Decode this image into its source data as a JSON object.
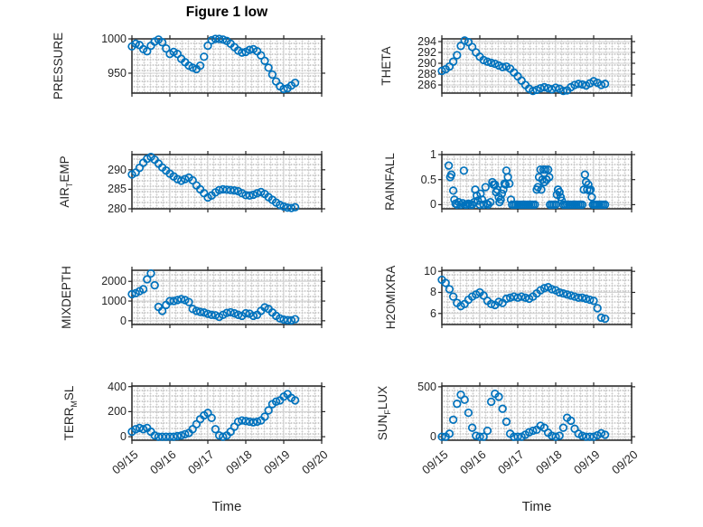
{
  "chart_data": {
    "type": "scatter",
    "title": "Figure 1 low",
    "xlabel": "Time",
    "xlim": [
      0,
      5
    ],
    "xticks": [
      0,
      1,
      2,
      3,
      4,
      5
    ],
    "xticklabels": [
      "09/15",
      "09/16",
      "09/17",
      "09/18",
      "09/19",
      "09/20"
    ],
    "x_unit": "days since 09/15",
    "grid": "major solid, minor dotted",
    "colors": {
      "marker": "#0072bd",
      "axis": "#252525",
      "grid": "#d2d2d2",
      "text": "#262626"
    },
    "x": [
      0,
      0.1,
      0.2,
      0.3,
      0.4,
      0.5,
      0.6,
      0.7,
      0.8,
      0.9,
      1,
      1.1,
      1.2,
      1.3,
      1.4,
      1.5,
      1.6,
      1.7,
      1.8,
      1.9,
      2,
      2.1,
      2.2,
      2.3,
      2.4,
      2.5,
      2.6,
      2.7,
      2.8,
      2.9,
      3,
      3.1,
      3.2,
      3.3,
      3.4,
      3.5,
      3.6,
      3.7,
      3.8,
      3.9,
      4,
      4.1,
      4.2,
      4.3
    ],
    "panels": [
      {
        "name": "PRESSURE",
        "ylabel_pre": "PRESSURE",
        "ylabel_sub": "",
        "ylabel_post": "",
        "ylim": [
          921,
          1000
        ],
        "yticks": [
          950,
          1000
        ],
        "values": [
          989,
          993,
          991,
          985,
          982,
          990,
          996,
          999,
          995,
          986,
          978,
          981,
          978,
          971,
          966,
          961,
          958,
          956,
          961,
          974,
          990,
          998,
          1000,
          1000,
          999,
          997,
          993,
          988,
          983,
          980,
          981,
          984,
          985,
          982,
          976,
          968,
          958,
          948,
          938,
          931,
          927,
          928,
          932,
          936
        ]
      },
      {
        "name": "THETA",
        "ylabel_pre": "THETA",
        "ylabel_sub": "",
        "ylabel_post": "",
        "ylim": [
          284.5,
          294.5
        ],
        "yticks": [
          286,
          288,
          290,
          292,
          294
        ],
        "values": [
          288.6,
          288.9,
          289.4,
          290.3,
          291.5,
          293.2,
          294.2,
          293.9,
          293,
          292,
          291.2,
          290.6,
          290.3,
          290.1,
          289.9,
          289.6,
          289.3,
          289.4,
          289,
          288.3,
          287.6,
          286.8,
          286,
          285.3,
          284.9,
          285.1,
          285.4,
          285.6,
          285.4,
          285.2,
          285.5,
          285.3,
          284.9,
          285,
          285.6,
          286,
          286.2,
          286.1,
          285.9,
          286.3,
          286.7,
          286.4,
          286,
          286.2
        ]
      },
      {
        "name": "AIR_TEMP",
        "ylabel_pre": "AIR",
        "ylabel_sub": "T",
        "ylabel_post": "EMP",
        "ylim": [
          280,
          293.9
        ],
        "yticks": [
          280,
          285,
          290
        ],
        "values": [
          288.8,
          289.3,
          290.5,
          291.8,
          292.8,
          293.3,
          292.6,
          291.6,
          290.6,
          289.8,
          289,
          288.3,
          287.6,
          287.2,
          287.6,
          288,
          287.3,
          286,
          285,
          284,
          282.9,
          283.4,
          284.2,
          284.8,
          285,
          284.9,
          284.8,
          284.7,
          284.5,
          284,
          283.5,
          283.4,
          283.6,
          284,
          284.3,
          283.8,
          283,
          282.3,
          281.6,
          281,
          280.6,
          280.3,
          280.2,
          280.4
        ]
      },
      {
        "name": "RAINFALL",
        "ylabel_pre": "RAINFALL",
        "ylabel_sub": "",
        "ylabel_post": "",
        "ylim": [
          -0.083,
          1.0
        ],
        "yticks": [
          0,
          0.5,
          1
        ],
        "points": [
          [
            0.18,
            0.78
          ],
          [
            0.22,
            0.55
          ],
          [
            0.25,
            0.6
          ],
          [
            0.3,
            0.28
          ],
          [
            0.33,
            0.1
          ],
          [
            0.36,
            0.02
          ],
          [
            0.4,
            0
          ],
          [
            0.44,
            0.05
          ],
          [
            0.5,
            0
          ],
          [
            0.55,
            0.03
          ],
          [
            0.58,
            0.68
          ],
          [
            0.62,
            0
          ],
          [
            0.65,
            0
          ],
          [
            0.7,
            0.02
          ],
          [
            0.75,
            0
          ],
          [
            0.8,
            0
          ],
          [
            0.85,
            0.05
          ],
          [
            0.88,
            0.3
          ],
          [
            0.92,
            0.18
          ],
          [
            0.95,
            0.08
          ],
          [
            1,
            0
          ],
          [
            1.02,
            0.22
          ],
          [
            1.06,
            0.1
          ],
          [
            1.1,
            0
          ],
          [
            1.15,
            0.35
          ],
          [
            1.18,
            0.02
          ],
          [
            1.22,
            0
          ],
          [
            1.28,
            0.05
          ],
          [
            1.33,
            0.45
          ],
          [
            1.36,
            0.4
          ],
          [
            1.4,
            0.4
          ],
          [
            1.43,
            0.25
          ],
          [
            1.46,
            0.3
          ],
          [
            1.5,
            0.15
          ],
          [
            1.52,
            0.05
          ],
          [
            1.55,
            0.1
          ],
          [
            1.58,
            0.22
          ],
          [
            1.62,
            0.3
          ],
          [
            1.65,
            0.42
          ],
          [
            1.68,
            0.4
          ],
          [
            1.7,
            0.68
          ],
          [
            1.74,
            0.55
          ],
          [
            1.78,
            0.42
          ],
          [
            1.82,
            0.1
          ],
          [
            1.85,
            0
          ],
          [
            1.9,
            0
          ],
          [
            1.95,
            0
          ],
          [
            2,
            0
          ],
          [
            2.05,
            0
          ],
          [
            2.1,
            0
          ],
          [
            2.15,
            0
          ],
          [
            2.2,
            0
          ],
          [
            2.25,
            0
          ],
          [
            2.3,
            0
          ],
          [
            2.35,
            0
          ],
          [
            2.4,
            0
          ],
          [
            2.45,
            0
          ],
          [
            2.5,
            0.3
          ],
          [
            2.53,
            0.35
          ],
          [
            2.56,
            0.55
          ],
          [
            2.6,
            0.7
          ],
          [
            2.62,
            0.3
          ],
          [
            2.65,
            0.5
          ],
          [
            2.68,
            0.7
          ],
          [
            2.7,
            0.45
          ],
          [
            2.73,
            0.7
          ],
          [
            2.76,
            0.5
          ],
          [
            2.8,
            0.7
          ],
          [
            2.83,
            0.55
          ],
          [
            2.85,
            0
          ],
          [
            2.9,
            0
          ],
          [
            2.95,
            0
          ],
          [
            3,
            0
          ],
          [
            3.03,
            0.2
          ],
          [
            3.06,
            0.3
          ],
          [
            3.1,
            0.25
          ],
          [
            3.13,
            0.15
          ],
          [
            3.16,
            0.08
          ],
          [
            3.2,
            0
          ],
          [
            3.25,
            0
          ],
          [
            3.3,
            0
          ],
          [
            3.35,
            0
          ],
          [
            3.4,
            0
          ],
          [
            3.45,
            0
          ],
          [
            3.5,
            0
          ],
          [
            3.55,
            0
          ],
          [
            3.6,
            0
          ],
          [
            3.65,
            0
          ],
          [
            3.7,
            0
          ],
          [
            3.74,
            0.3
          ],
          [
            3.77,
            0.6
          ],
          [
            3.8,
            0.45
          ],
          [
            3.83,
            0.3
          ],
          [
            3.86,
            0.4
          ],
          [
            3.89,
            0.28
          ],
          [
            3.92,
            0.3
          ],
          [
            3.95,
            0.15
          ],
          [
            3.98,
            0
          ],
          [
            4.02,
            0
          ],
          [
            4.06,
            0
          ],
          [
            4.1,
            0
          ],
          [
            4.15,
            0
          ],
          [
            4.2,
            0
          ],
          [
            4.25,
            0
          ],
          [
            4.3,
            0
          ]
        ]
      },
      {
        "name": "MIXDEPTH",
        "ylabel_pre": "MIXDEPTH",
        "ylabel_sub": "",
        "ylabel_post": "",
        "ylim": [
          -190,
          2560
        ],
        "yticks": [
          0,
          1000,
          2000
        ],
        "values": [
          1350,
          1400,
          1500,
          1600,
          2100,
          2400,
          1800,
          700,
          500,
          800,
          1000,
          1000,
          1050,
          1100,
          1050,
          950,
          600,
          500,
          450,
          420,
          350,
          300,
          280,
          200,
          300,
          400,
          430,
          380,
          300,
          250,
          380,
          360,
          250,
          300,
          500,
          680,
          600,
          420,
          250,
          120,
          60,
          30,
          20,
          80
        ]
      },
      {
        "name": "H2OMIXRA",
        "ylabel_pre": "H2OMIXRA",
        "ylabel_sub": "",
        "ylabel_post": "",
        "ylim": [
          4.95,
          10.1
        ],
        "yticks": [
          6,
          8,
          10
        ],
        "values": [
          9.2,
          8.9,
          8.3,
          7.6,
          7,
          6.7,
          6.9,
          7.3,
          7.6,
          7.8,
          8,
          7.7,
          7.2,
          6.9,
          6.8,
          7.1,
          7,
          7.4,
          7.5,
          7.6,
          7.5,
          7.6,
          7.5,
          7.4,
          7.6,
          7.9,
          8.2,
          8.4,
          8.5,
          8.3,
          8.2,
          8,
          7.9,
          7.8,
          7.7,
          7.6,
          7.5,
          7.5,
          7.4,
          7.3,
          7.2,
          6.5,
          5.6,
          5.5
        ]
      },
      {
        "name": "TERR_MSL",
        "ylabel_pre": "TERR",
        "ylabel_sub": "M",
        "ylabel_post": "SL",
        "ylim": [
          -28,
          405
        ],
        "yticks": [
          0,
          200,
          400
        ],
        "values": [
          40,
          60,
          70,
          60,
          70,
          40,
          10,
          0,
          0,
          0,
          0,
          0,
          5,
          10,
          20,
          30,
          60,
          100,
          140,
          170,
          190,
          150,
          60,
          10,
          0,
          10,
          40,
          80,
          120,
          130,
          125,
          120,
          115,
          120,
          130,
          160,
          210,
          260,
          280,
          290,
          320,
          340,
          310,
          290
        ]
      },
      {
        "name": "SUN_FLUX",
        "ylabel_pre": "SUN",
        "ylabel_sub": "F",
        "ylabel_post": "LUX",
        "ylim": [
          -35,
          508
        ],
        "yticks": [
          0,
          500
        ],
        "values": [
          0,
          0,
          30,
          170,
          330,
          420,
          370,
          240,
          90,
          10,
          0,
          0,
          60,
          350,
          430,
          400,
          280,
          150,
          30,
          0,
          0,
          0,
          20,
          45,
          60,
          70,
          110,
          90,
          40,
          10,
          0,
          10,
          90,
          190,
          160,
          80,
          30,
          10,
          0,
          0,
          0,
          15,
          35,
          20
        ]
      }
    ]
  }
}
